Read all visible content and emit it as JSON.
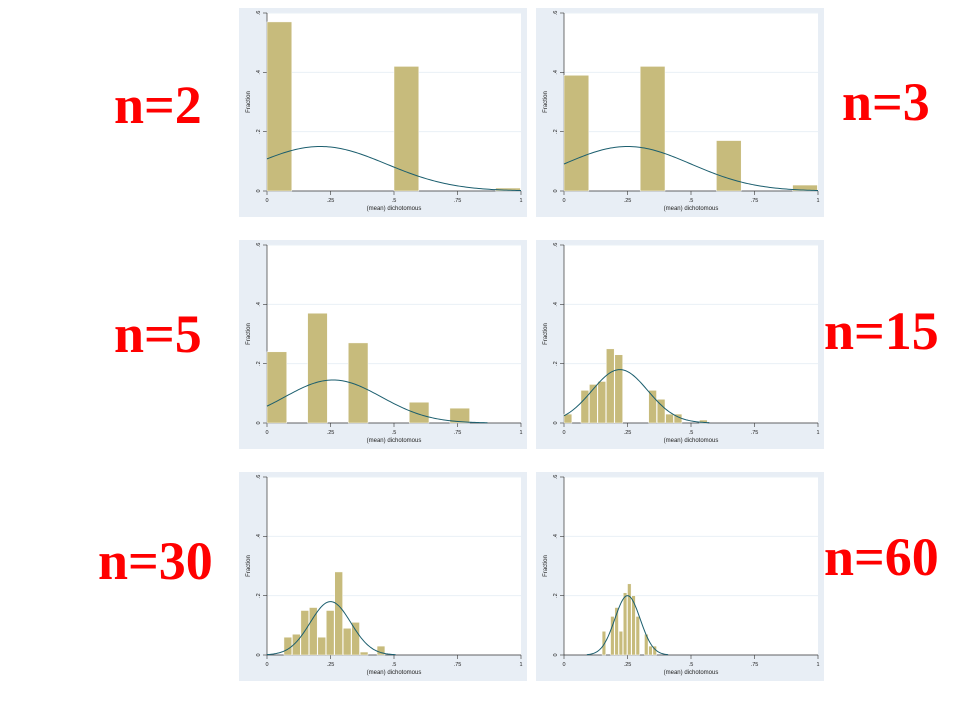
{
  "colors": {
    "bar": "#c7bb7c",
    "curve": "#1b5e6e",
    "label": "#ff0000",
    "frame": "#e8eef5"
  },
  "chart_data": [
    {
      "type": "bar",
      "label": "n=2",
      "n": 2,
      "bin_width": 0.1,
      "bins": [
        [
          0,
          0.57
        ],
        [
          0.5,
          0.42
        ],
        [
          0.9,
          0.01
        ]
      ],
      "normal": {
        "mean": 0.21,
        "sd": 0.26,
        "peak": 0.15
      },
      "xlabel": "(mean) dichotomous",
      "ylabel": "Fraction",
      "xticks": [
        "0",
        ".25",
        ".5",
        ".75",
        "1"
      ],
      "yticks": [
        "0",
        ".2",
        ".4",
        ".6"
      ],
      "xlim": [
        0,
        1
      ],
      "ylim": [
        0,
        0.6
      ]
    },
    {
      "type": "bar",
      "label": "n=3",
      "n": 3,
      "bin_width": 0.1,
      "bins": [
        [
          0,
          0.39
        ],
        [
          0.3,
          0.42
        ],
        [
          0.6,
          0.17
        ],
        [
          0.9,
          0.02
        ]
      ],
      "normal": {
        "mean": 0.25,
        "sd": 0.25,
        "peak": 0.15
      },
      "xlabel": "(mean) dichotomous",
      "ylabel": "Fraction",
      "xticks": [
        "0",
        ".25",
        ".5",
        ".75",
        "1"
      ],
      "yticks": [
        "0",
        ".2",
        ".4",
        ".6"
      ],
      "xlim": [
        0,
        1
      ],
      "ylim": [
        0,
        0.6
      ]
    },
    {
      "type": "bar",
      "label": "n=5",
      "n": 5,
      "bin_width": 0.08,
      "bins": [
        [
          0,
          0.24
        ],
        [
          0.16,
          0.37
        ],
        [
          0.32,
          0.27
        ],
        [
          0.56,
          0.07
        ],
        [
          0.72,
          0.05
        ]
      ],
      "normal": {
        "mean": 0.26,
        "sd": 0.19,
        "peak": 0.145
      },
      "xlabel": "(mean) dichotomous",
      "ylabel": "Fraction",
      "xticks": [
        "0",
        ".25",
        ".5",
        ".75",
        "1"
      ],
      "yticks": [
        "0",
        ".2",
        ".4",
        ".6"
      ],
      "xlim": [
        0,
        1
      ],
      "ylim": [
        0,
        0.6
      ]
    },
    {
      "type": "bar",
      "label": "n=15",
      "n": 15,
      "bin_width": 0.0333,
      "bins": [
        [
          0,
          0.03
        ],
        [
          0.0667,
          0.11
        ],
        [
          0.1,
          0.13
        ],
        [
          0.1333,
          0.14
        ],
        [
          0.1667,
          0.25
        ],
        [
          0.2,
          0.23
        ],
        [
          0.3333,
          0.11
        ],
        [
          0.3667,
          0.08
        ],
        [
          0.4,
          0.03
        ],
        [
          0.4333,
          0.03
        ],
        [
          0.5333,
          0.01
        ]
      ],
      "normal": {
        "mean": 0.22,
        "sd": 0.11,
        "peak": 0.18
      },
      "xlabel": "(mean) dichotomous",
      "ylabel": "Fraction",
      "xticks": [
        "0",
        ".25",
        ".5",
        ".75",
        "1"
      ],
      "yticks": [
        "0",
        ".2",
        ".4",
        ".6"
      ],
      "xlim": [
        0,
        1
      ],
      "ylim": [
        0,
        0.6
      ]
    },
    {
      "type": "bar",
      "label": "n=30",
      "n": 30,
      "bin_width": 0.0333,
      "bins": [
        [
          0.0667,
          0.06
        ],
        [
          0.1,
          0.07
        ],
        [
          0.1333,
          0.15
        ],
        [
          0.1667,
          0.16
        ],
        [
          0.2,
          0.06
        ],
        [
          0.2333,
          0.15
        ],
        [
          0.2667,
          0.28
        ],
        [
          0.3,
          0.09
        ],
        [
          0.3333,
          0.11
        ],
        [
          0.3667,
          0.01
        ],
        [
          0.4333,
          0.03
        ]
      ],
      "normal": {
        "mean": 0.25,
        "sd": 0.08,
        "peak": 0.18
      },
      "xlabel": "(mean) dichotomous",
      "ylabel": "Fraction",
      "xticks": [
        "0",
        ".25",
        ".5",
        ".75",
        "1"
      ],
      "yticks": [
        "0",
        ".2",
        ".4",
        ".6"
      ],
      "xlim": [
        0,
        1
      ],
      "ylim": [
        0,
        0.6
      ]
    },
    {
      "type": "bar",
      "label": "n=60",
      "n": 60,
      "bin_width": 0.0167,
      "bins": [
        [
          0.15,
          0.08
        ],
        [
          0.1833,
          0.13
        ],
        [
          0.2,
          0.16
        ],
        [
          0.2167,
          0.08
        ],
        [
          0.2333,
          0.21
        ],
        [
          0.25,
          0.24
        ],
        [
          0.2667,
          0.2
        ],
        [
          0.2833,
          0.13
        ],
        [
          0.3167,
          0.07
        ],
        [
          0.3333,
          0.03
        ],
        [
          0.35,
          0.03
        ]
      ],
      "normal": {
        "mean": 0.25,
        "sd": 0.05,
        "peak": 0.2
      },
      "xlabel": "(mean) dichotomous",
      "ylabel": "Fraction",
      "xticks": [
        "0",
        ".25",
        ".5",
        ".75",
        "1"
      ],
      "yticks": [
        "0",
        ".2",
        ".4",
        ".6"
      ],
      "xlim": [
        0,
        1
      ],
      "ylim": [
        0,
        0.6
      ]
    }
  ]
}
